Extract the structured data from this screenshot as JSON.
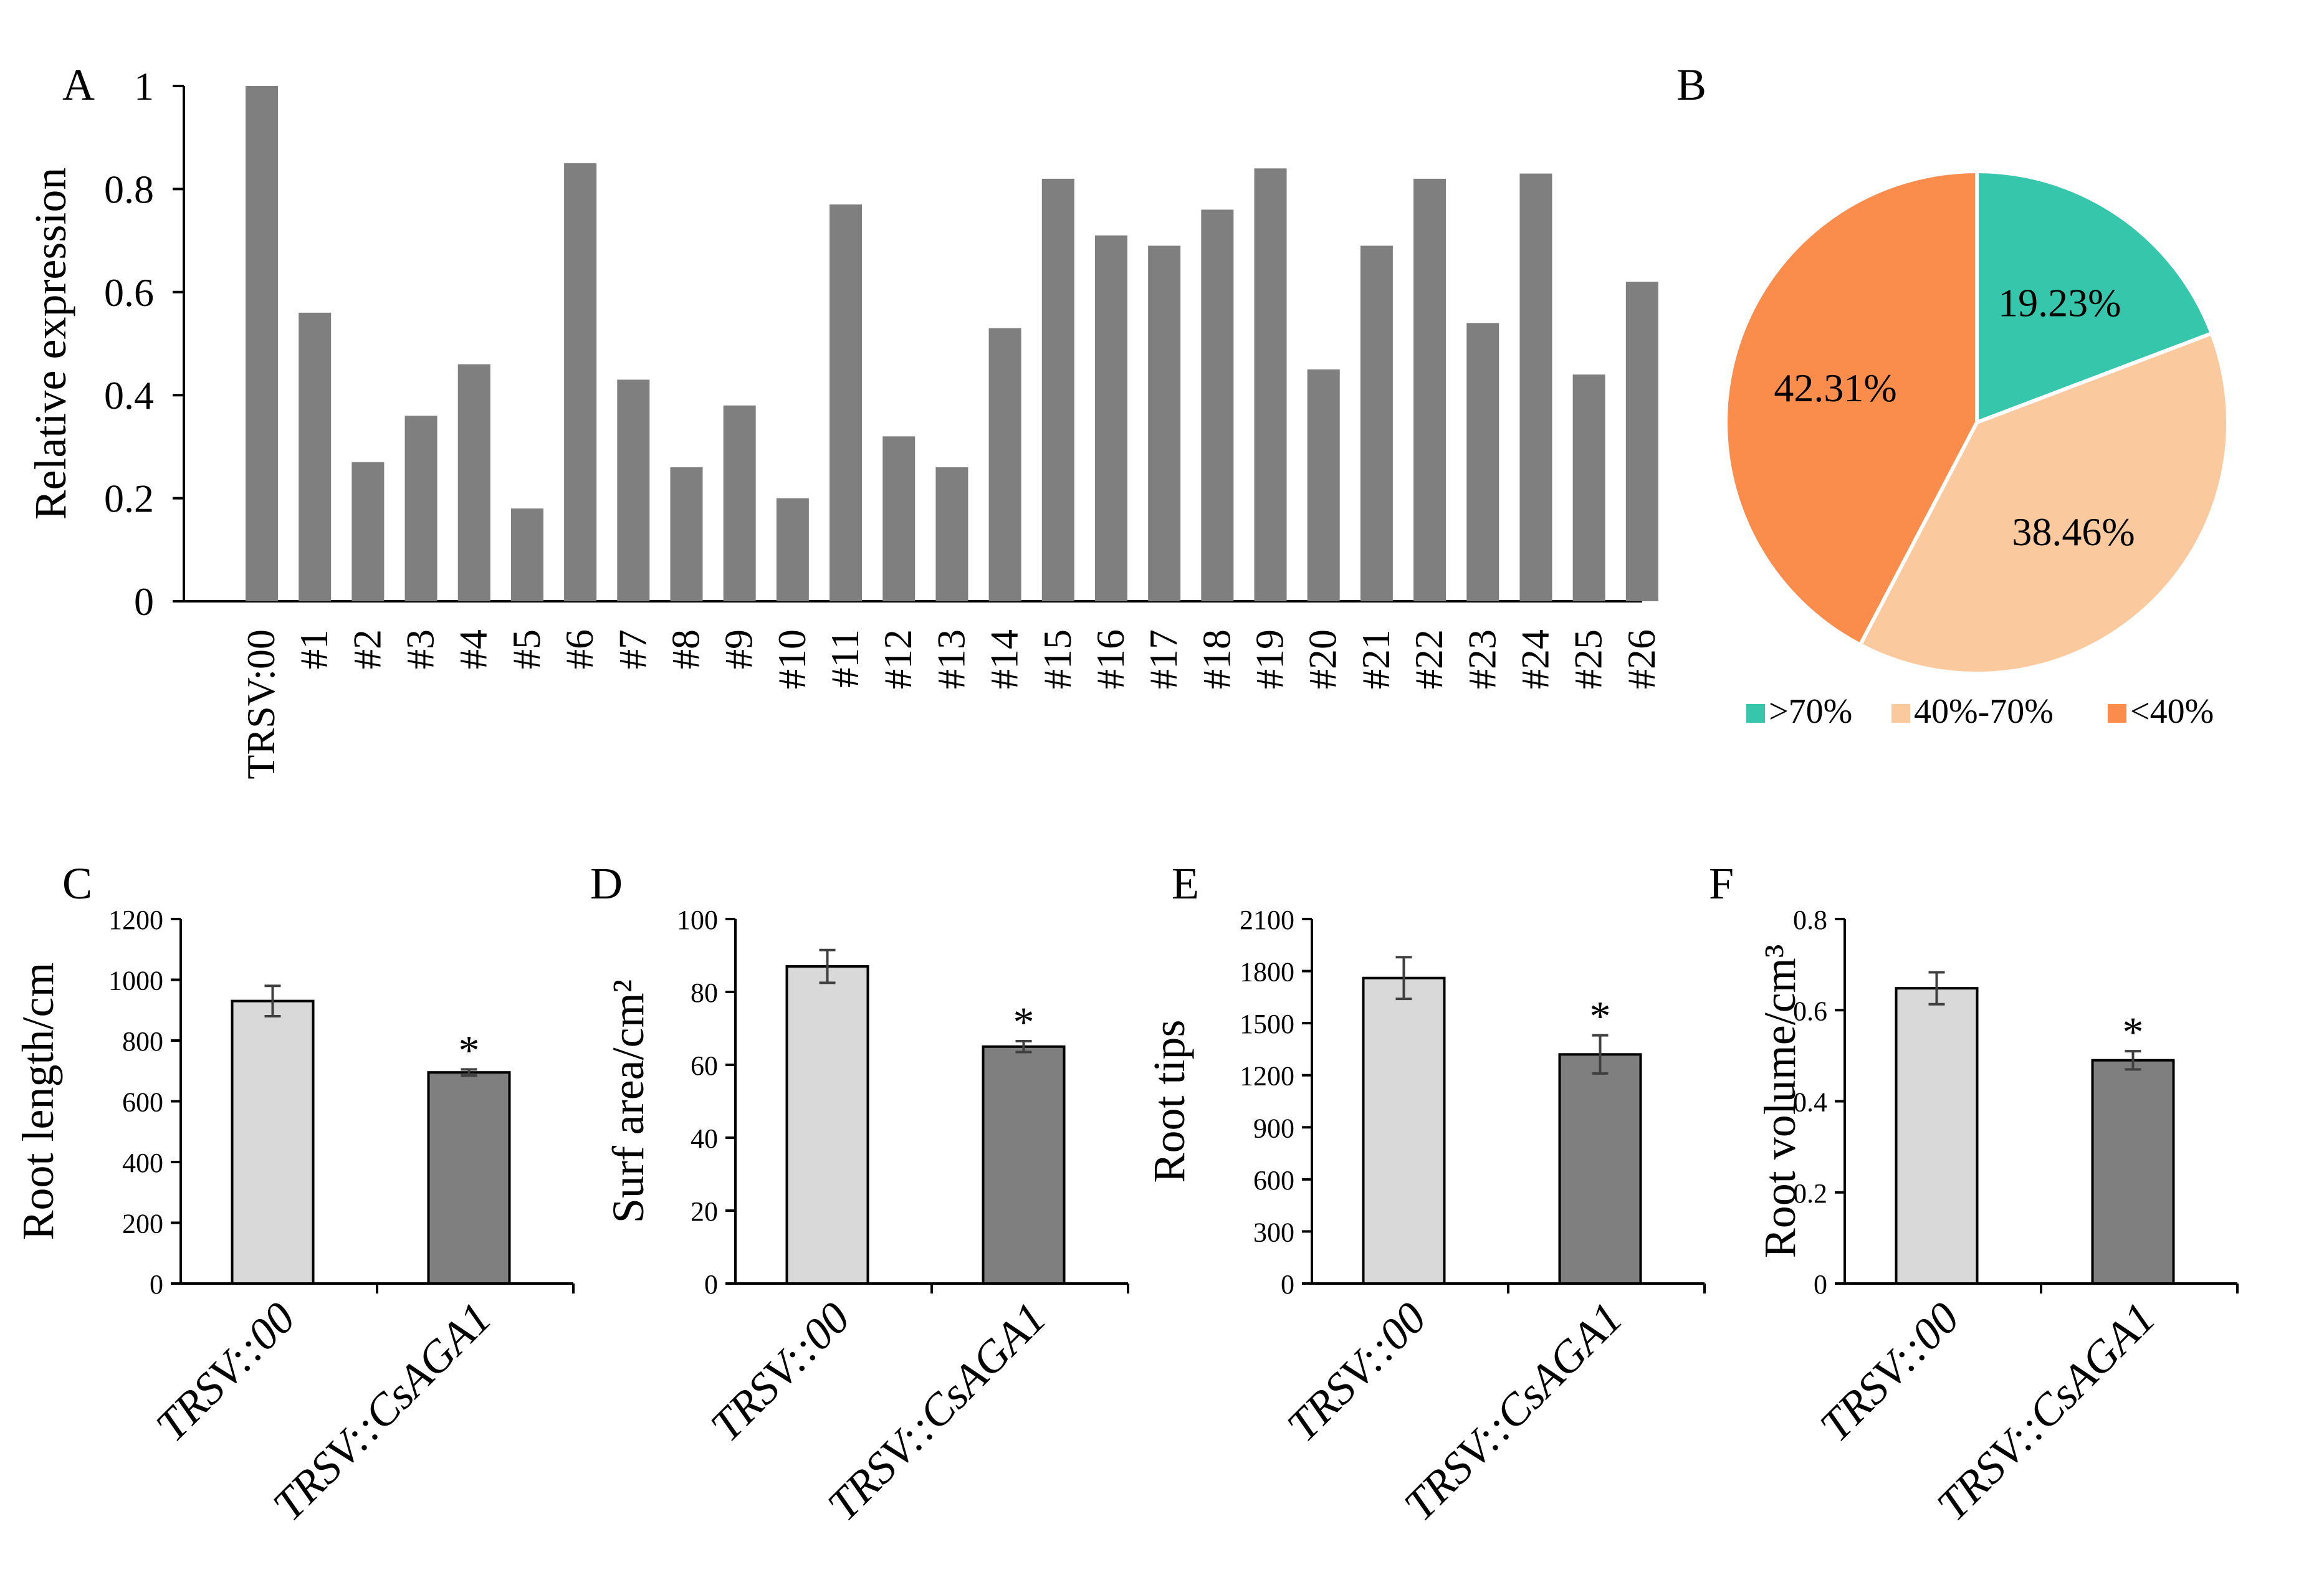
{
  "chart_data": [
    {
      "panel": "A",
      "type": "bar",
      "ylabel": "Relative expression",
      "ylim": [
        0,
        1
      ],
      "yticks": [
        "0",
        "0.2",
        "0.4",
        "0.6",
        "0.8",
        "1"
      ],
      "categories": [
        "TRSV:00",
        "#1",
        "#2",
        "#3",
        "#4",
        "#5",
        "#6",
        "#7",
        "#8",
        "#9",
        "#10",
        "#11",
        "#12",
        "#13",
        "#14",
        "#15",
        "#16",
        "#17",
        "#18",
        "#19",
        "#20",
        "#21",
        "#22",
        "#23",
        "#24",
        "#25",
        "#26"
      ],
      "values": [
        1.0,
        0.56,
        0.27,
        0.36,
        0.46,
        0.18,
        0.85,
        0.43,
        0.26,
        0.38,
        0.2,
        0.77,
        0.32,
        0.26,
        0.53,
        0.82,
        0.71,
        0.69,
        0.76,
        0.84,
        0.45,
        0.69,
        0.82,
        0.54,
        0.83,
        0.44,
        0.62
      ],
      "colors": {
        "bar": "#7f7f7f"
      }
    },
    {
      "panel": "B",
      "type": "pie",
      "slices": [
        {
          "label": ">70%",
          "value": 19.23,
          "text": "19.23%",
          "color": "#36c6ab"
        },
        {
          "label": "40%-70%",
          "value": 38.46,
          "text": "38.46%",
          "color": "#fbc99e"
        },
        {
          "label": "<40%",
          "value": 42.31,
          "text": "42.31%",
          "color": "#fa8c4c"
        }
      ],
      "legend_position": "bottom"
    },
    {
      "panel": "C",
      "type": "bar",
      "ylabel": "Root length/cm",
      "ylim": [
        0,
        1200
      ],
      "yticks": [
        "0",
        "200",
        "400",
        "600",
        "800",
        "1000",
        "1200"
      ],
      "categories": [
        "TRSV::00",
        "TRSV::CsAGA1"
      ],
      "values": [
        930,
        695
      ],
      "errors": [
        50,
        10
      ],
      "significance": [
        "",
        "*"
      ],
      "colors": [
        "#d9d9d9",
        "#7f7f7f"
      ]
    },
    {
      "panel": "D",
      "type": "bar",
      "ylabel": "Surf area/cm²",
      "ylim": [
        0,
        100
      ],
      "yticks": [
        "0",
        "20",
        "40",
        "60",
        "80",
        "100"
      ],
      "categories": [
        "TRSV::00",
        "TRSV::CsAGA1"
      ],
      "values": [
        87,
        65
      ],
      "errors": [
        4.5,
        1.5
      ],
      "significance": [
        "",
        "*"
      ],
      "colors": [
        "#d9d9d9",
        "#7f7f7f"
      ]
    },
    {
      "panel": "E",
      "type": "bar",
      "ylabel": "Root tips",
      "ylim": [
        0,
        2100
      ],
      "yticks": [
        "0",
        "300",
        "600",
        "900",
        "1200",
        "1500",
        "1800",
        "2100"
      ],
      "categories": [
        "TRSV::00",
        "TRSV::CsAGA1"
      ],
      "values": [
        1760,
        1320
      ],
      "errors": [
        120,
        110
      ],
      "significance": [
        "",
        "*"
      ],
      "colors": [
        "#d9d9d9",
        "#7f7f7f"
      ]
    },
    {
      "panel": "F",
      "type": "bar",
      "ylabel": "Root volume/cm³",
      "ylim": [
        0,
        0.8
      ],
      "yticks": [
        "0",
        "0.2",
        "0.4",
        "0.6",
        "0.8"
      ],
      "categories": [
        "TRSV::00",
        "TRSV::CsAGA1"
      ],
      "values": [
        0.648,
        0.49
      ],
      "errors": [
        0.035,
        0.02
      ],
      "significance": [
        "",
        "*"
      ],
      "colors": [
        "#d9d9d9",
        "#7f7f7f"
      ]
    }
  ]
}
